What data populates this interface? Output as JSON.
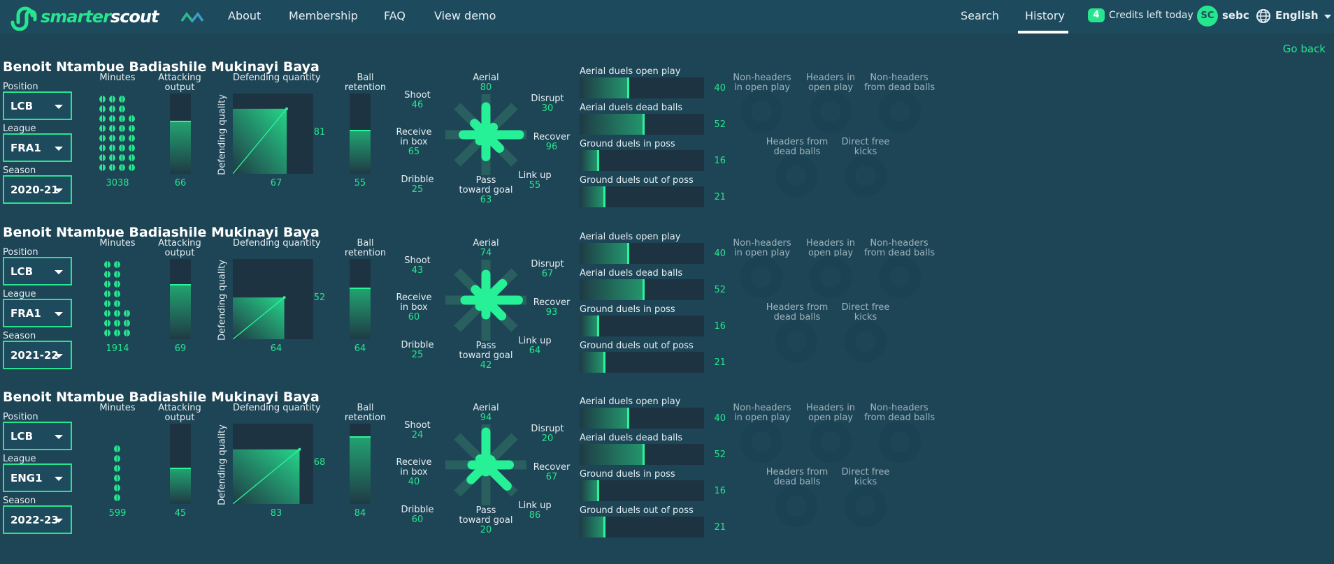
{
  "nav": {
    "logo_text_a": "smarter",
    "logo_text_b": "scout",
    "links": [
      "About",
      "Membership",
      "FAQ",
      "View demo"
    ],
    "search": "Search",
    "history": "History",
    "credits_count": "4",
    "credits_text": "Credits left today",
    "avatar_initials": "SC",
    "username": "sebc",
    "language": "English",
    "icons": {
      "globe": "globe-icon",
      "caret": "chevron-down-icon",
      "mark": "wave-logo-icon"
    }
  },
  "go_back": "Go back",
  "labels": {
    "position": "Position",
    "league": "League",
    "season": "Season",
    "minutes": "Minutes",
    "attacking_output": [
      "Attacking",
      "output"
    ],
    "defending_quantity": "Defending quantity",
    "defending_quality": "Defending quality",
    "ball_retention": [
      "Ball",
      "retention"
    ],
    "radial": {
      "aerial": "Aerial",
      "shoot": "Shoot",
      "disrupt": "Disrupt",
      "receive": [
        "Receive",
        "in box"
      ],
      "recover": "Recover",
      "dribble": "Dribble",
      "linkup": "Link up",
      "pass": [
        "Pass",
        "toward goal"
      ]
    },
    "duels": [
      "Aerial duels open play",
      "Aerial duels dead balls",
      "Ground duels in poss",
      "Ground duels out of poss"
    ],
    "rings": [
      [
        "Non-headers",
        "in open play"
      ],
      [
        "Headers in",
        "open play"
      ],
      [
        "Non-headers",
        "from dead balls"
      ],
      [
        "Headers from",
        "dead balls"
      ],
      [
        "Direct free",
        "kicks"
      ]
    ]
  },
  "colors": {
    "accent": "#26e58e",
    "background": "#1d4556",
    "panel": "#1e3342"
  },
  "players": [
    {
      "name": "Benoit Ntambue Badiashile Mukinayi Baya",
      "position": "LCB",
      "league": "FRA1",
      "season": "2020-21",
      "minutes": "3038",
      "attacking_output": "66",
      "defending_quantity": "67",
      "defending_quality": "81",
      "ball_retention": "55",
      "radial": {
        "aerial": "80",
        "shoot": "46",
        "disrupt": "30",
        "receive": "65",
        "recover": "96",
        "dribble": "25",
        "linkup": "55",
        "pass": "63"
      },
      "duels": [
        "40",
        "52",
        "16",
        "21"
      ]
    },
    {
      "name": "Benoit Ntambue Badiashile Mukinayi Baya",
      "position": "LCB",
      "league": "FRA1",
      "season": "2021-22",
      "minutes": "1914",
      "attacking_output": "69",
      "defending_quantity": "64",
      "defending_quality": "52",
      "ball_retention": "64",
      "radial": {
        "aerial": "74",
        "shoot": "43",
        "disrupt": "67",
        "receive": "60",
        "recover": "93",
        "dribble": "25",
        "linkup": "64",
        "pass": "42"
      },
      "duels": [
        "40",
        "52",
        "16",
        "21"
      ]
    },
    {
      "name": "Benoit Ntambue Badiashile Mukinayi Baya",
      "position": "LCB",
      "league": "ENG1",
      "season": "2022-23",
      "minutes": "599",
      "attacking_output": "45",
      "defending_quantity": "83",
      "defending_quality": "68",
      "ball_retention": "84",
      "radial": {
        "aerial": "94",
        "shoot": "24",
        "disrupt": "20",
        "receive": "40",
        "recover": "67",
        "dribble": "60",
        "linkup": "86",
        "pass": "20"
      },
      "duels": [
        "40",
        "52",
        "16",
        "21"
      ]
    }
  ]
}
